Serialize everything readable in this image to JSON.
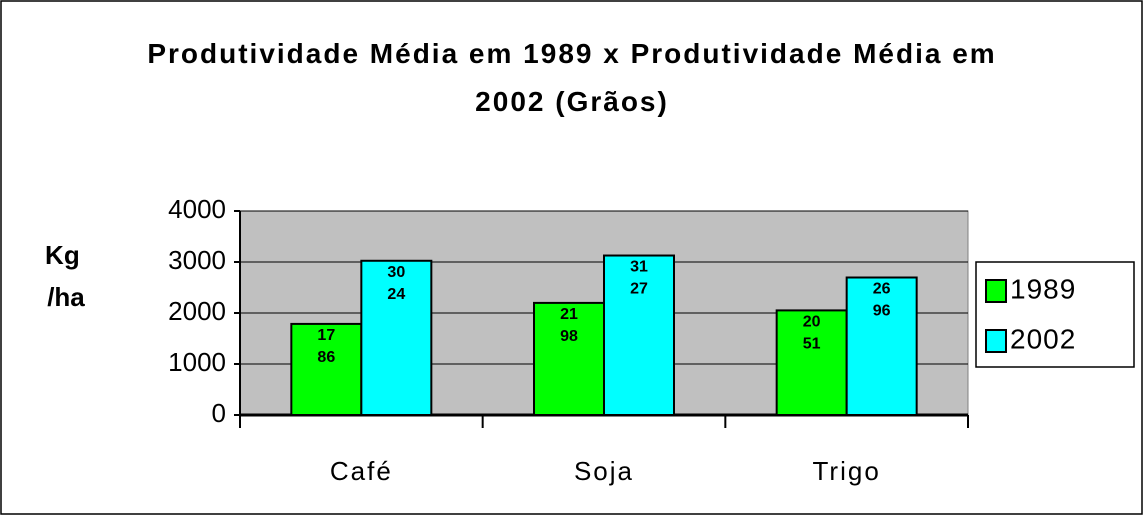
{
  "chart_data": {
    "type": "bar",
    "title": "Produtividade Média em 1989 x Produtividade Média em 2002 (Grãos)",
    "ylabel": "Kg /ha",
    "categories": [
      "Café",
      "Soja",
      "Trigo"
    ],
    "series": [
      {
        "name": "1989",
        "color": "#00ff00",
        "values": [
          1786,
          2198,
          2051
        ]
      },
      {
        "name": "2002",
        "color": "#00ffff",
        "values": [
          3024,
          3127,
          2696
        ]
      }
    ],
    "ylim": [
      0,
      4000
    ],
    "yticks": [
      0,
      1000,
      2000,
      3000,
      4000
    ],
    "grid": true,
    "legend": "right"
  }
}
